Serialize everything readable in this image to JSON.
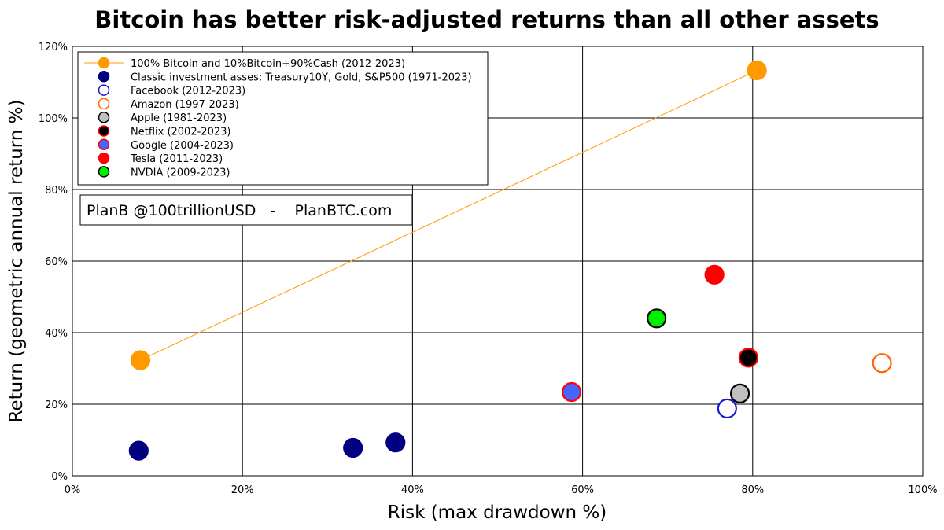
{
  "chart_data": {
    "type": "scatter",
    "title": "Bitcoin has better risk-adjusted returns than all other assets",
    "xlabel": "Risk (max drawdown %)",
    "ylabel": "Return (geometric annual return %)",
    "xlim": [
      0,
      100
    ],
    "ylim": [
      0,
      120
    ],
    "x_ticks": [
      "0%",
      "20%",
      "40%",
      "60%",
      "80%",
      "100%"
    ],
    "y_ticks": [
      "0%",
      "20%",
      "40%",
      "60%",
      "80%",
      "100%",
      "120%"
    ],
    "grid": true,
    "legend_position": "top-left",
    "annotation": "PlanB @100trillionUSD   -    PlanBTC.com",
    "series": [
      {
        "name": "100% Bitcoin and 10%Bitcoin+90%Cash (2012-2023)",
        "fill": "#ff9900",
        "stroke": "#ff9900",
        "line": true,
        "line_color": "#ff9900",
        "points": [
          {
            "x": 8,
            "y": 32.3
          },
          {
            "x": 80.5,
            "y": 113.3
          }
        ]
      },
      {
        "name": "Classic investment asses: Treasury10Y, Gold, S&P500 (1971-2023)",
        "fill": "#000080",
        "stroke": "#000080",
        "line": false,
        "points": [
          {
            "x": 7.8,
            "y": 7.0
          },
          {
            "x": 33,
            "y": 7.8
          },
          {
            "x": 38,
            "y": 9.3
          }
        ]
      },
      {
        "name": "Facebook (2012-2023)",
        "fill": "#ffffff",
        "stroke": "#1a1acc",
        "line": false,
        "points": [
          {
            "x": 77,
            "y": 18.8
          }
        ]
      },
      {
        "name": "Amazon (1997-2023)",
        "fill": "#ffffff",
        "stroke": "#ff6600",
        "line": false,
        "points": [
          {
            "x": 95.2,
            "y": 31.5
          }
        ]
      },
      {
        "name": "Apple (1981-2023)",
        "fill": "#c0c0c0",
        "stroke": "#000000",
        "line": false,
        "points": [
          {
            "x": 78.5,
            "y": 23.0
          }
        ]
      },
      {
        "name": "Netflix (2002-2023)",
        "fill": "#000000",
        "stroke": "#ff0000",
        "line": false,
        "points": [
          {
            "x": 79.5,
            "y": 33.0
          }
        ]
      },
      {
        "name": "Google (2004-2023)",
        "fill": "#4466ff",
        "stroke": "#ff0000",
        "line": false,
        "points": [
          {
            "x": 58.7,
            "y": 23.4
          }
        ]
      },
      {
        "name": "Tesla (2011-2023)",
        "fill": "#ff0000",
        "stroke": "#ff0000",
        "line": false,
        "points": [
          {
            "x": 75.5,
            "y": 56.2
          }
        ]
      },
      {
        "name": "NVDIA (2009-2023)",
        "fill": "#00ee00",
        "stroke": "#000000",
        "line": false,
        "points": [
          {
            "x": 68.7,
            "y": 44.0
          }
        ]
      }
    ]
  }
}
